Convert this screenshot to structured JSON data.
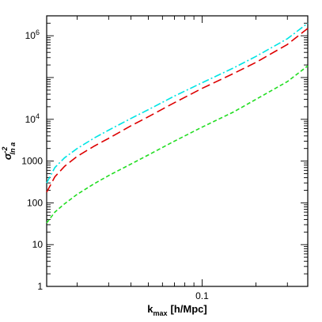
{
  "chart_data": {
    "type": "line",
    "xlabel": {
      "main": "k",
      "sub": "max",
      "unit": "[h/Mpc]"
    },
    "ylabel": {
      "main": "σ",
      "sub": "ln a",
      "sup": "-2"
    },
    "x_scale": "log",
    "y_scale": "log",
    "xlim": [
      0.0135,
      0.39
    ],
    "ylim": [
      1,
      3000000
    ],
    "x_ticks": [
      {
        "value": 0.1,
        "label": "0.1"
      }
    ],
    "y_ticks": [
      {
        "value": 1,
        "label": "1"
      },
      {
        "value": 10,
        "label": "10"
      },
      {
        "value": 100,
        "label": "100"
      },
      {
        "value": 1000,
        "label": "1000"
      },
      {
        "value": 10000,
        "base": "10",
        "exp": "4"
      },
      {
        "value": 1000000,
        "base": "10",
        "exp": "6"
      }
    ],
    "grid": false,
    "legend": "none",
    "series": [
      {
        "color": "#00e5e5",
        "dash": "dash-dot",
        "x": [
          0.0135,
          0.015,
          0.017,
          0.02,
          0.025,
          0.03,
          0.04,
          0.05,
          0.07,
          0.1,
          0.15,
          0.2,
          0.3,
          0.39
        ],
        "y": [
          300,
          700,
          1200,
          2000,
          3600,
          5500,
          10500,
          17000,
          36000,
          75000,
          170000,
          320000,
          850000,
          2000000
        ]
      },
      {
        "color": "#dd0000",
        "dash": "long-dash",
        "x": [
          0.0135,
          0.015,
          0.017,
          0.02,
          0.025,
          0.03,
          0.04,
          0.05,
          0.07,
          0.1,
          0.15,
          0.2,
          0.3,
          0.39
        ],
        "y": [
          180,
          420,
          750,
          1300,
          2300,
          3500,
          7000,
          11500,
          25000,
          55000,
          125000,
          230000,
          620000,
          1500000
        ]
      },
      {
        "color": "#22dd22",
        "dash": "short-dash",
        "x": [
          0.0135,
          0.015,
          0.017,
          0.02,
          0.025,
          0.03,
          0.04,
          0.05,
          0.07,
          0.1,
          0.15,
          0.2,
          0.3,
          0.39
        ],
        "y": [
          33,
          60,
          95,
          160,
          290,
          450,
          850,
          1400,
          3000,
          6500,
          15000,
          30000,
          80000,
          190000
        ]
      }
    ]
  }
}
